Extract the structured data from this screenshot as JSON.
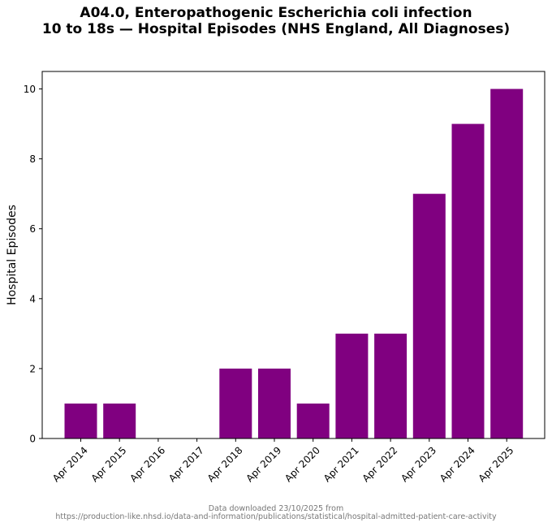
{
  "chart_data": {
    "type": "bar",
    "title_line1": "A04.0, Enteropathogenic Escherichia coli infection",
    "title_line2": "10 to 18s — Hospital Episodes (NHS England, All Diagnoses)",
    "xlabel": "",
    "ylabel": "Hospital Episodes",
    "categories": [
      "Apr 2014",
      "Apr 2015",
      "Apr 2016",
      "Apr 2017",
      "Apr 2018",
      "Apr 2019",
      "Apr 2020",
      "Apr 2021",
      "Apr 2022",
      "Apr 2023",
      "Apr 2024",
      "Apr 2025"
    ],
    "values": [
      1,
      1,
      0,
      0,
      2,
      2,
      1,
      3,
      3,
      7,
      9,
      10
    ],
    "ylim": [
      0,
      10.5
    ],
    "yticks": [
      0,
      2,
      4,
      6,
      8,
      10
    ],
    "bar_color": "#800080",
    "grid": false
  },
  "footer": {
    "line1": "Data downloaded 23/10/2025 from",
    "line2": "https://production-like.nhsd.io/data-and-information/publications/statistical/hospital-admitted-patient-care-activity"
  }
}
